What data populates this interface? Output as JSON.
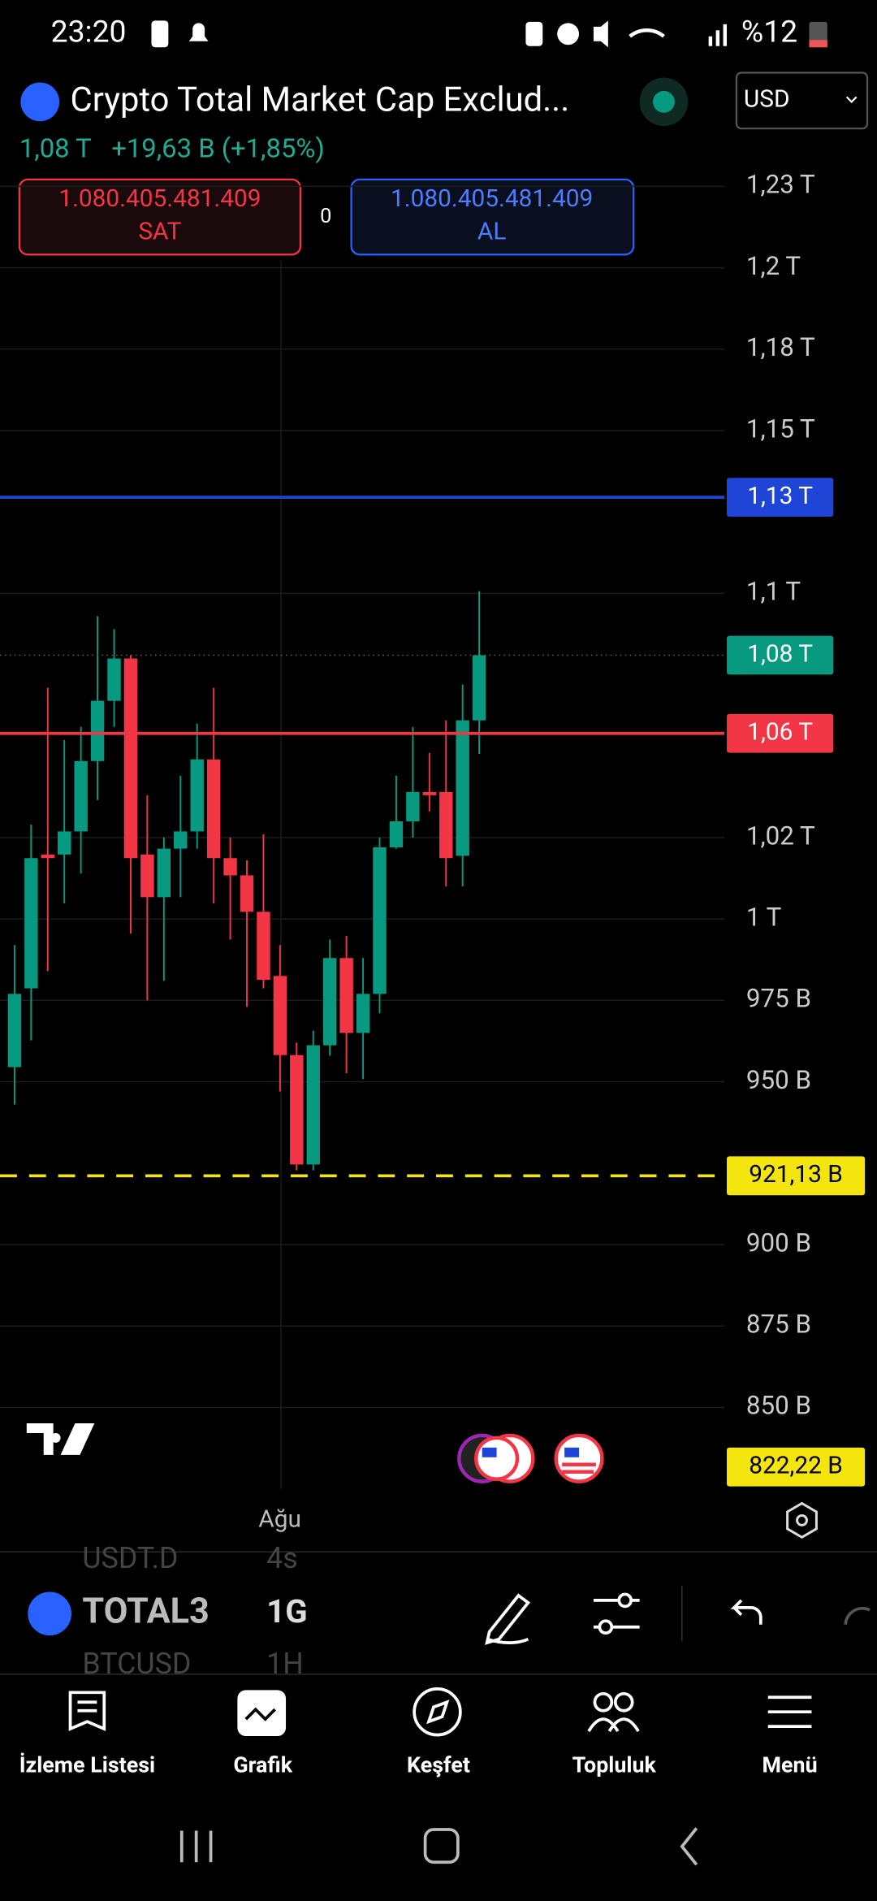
{
  "status_bar": {
    "time": "23:20",
    "battery": "%12"
  },
  "header": {
    "title": "Crypto Total Market Cap Exclud...",
    "currency": "USD",
    "price": "1,08 T",
    "change": "+19,63 B (+1,85%)"
  },
  "trade": {
    "sell_price": "1.080.405.481.409",
    "sell": "SAT",
    "spread": "0",
    "buy_price": "1.080.405.481.409",
    "buy": "AL"
  },
  "chart_data": {
    "type": "candlestick",
    "ylim": [
      825,
      1245
    ],
    "yticks": [
      {
        "value": 1225,
        "label": "1,23 T"
      },
      {
        "value": 1200,
        "label": "1,2 T"
      },
      {
        "value": 1175,
        "label": "1,18 T"
      },
      {
        "value": 1150,
        "label": "1,15 T"
      },
      {
        "value": 1100,
        "label": "1,1 T"
      },
      {
        "value": 1025,
        "label": "1,02 T"
      },
      {
        "value": 1000,
        "label": "1 T"
      },
      {
        "value": 975,
        "label": "975 B"
      },
      {
        "value": 950,
        "label": "950 B"
      },
      {
        "value": 900,
        "label": "900 B"
      },
      {
        "value": 875,
        "label": "875 B"
      },
      {
        "value": 850,
        "label": "850 B"
      }
    ],
    "open": [
      954.5,
      978.7,
      1019.8,
      1019.8,
      1026.9,
      1048.5,
      1067,
      1080,
      1019.8,
      1006.7,
      1021.6,
      1026.9,
      1049,
      1018.7,
      1013.4,
      1002.2,
      982.5,
      958.2,
      924.6,
      961.2,
      988,
      965,
      977,
      1022,
      1030,
      1039,
      1039,
      1019.4,
      1061
    ],
    "high": [
      992,
      1029,
      1071,
      1055,
      1059,
      1093,
      1089,
      1081,
      1038,
      1025,
      1044,
      1060,
      1071,
      1025,
      1018,
      1026,
      992,
      962,
      965.7,
      993.7,
      994.8,
      988,
      1025,
      1044,
      1059,
      1051,
      1061,
      1072,
      1100.7
    ],
    "low": [
      943,
      962.7,
      984,
      1004.8,
      1014,
      1036.5,
      1059,
      995.5,
      975,
      981,
      1006.7,
      1021.6,
      1004.8,
      993.7,
      973,
      978.7,
      947,
      922.8,
      922.8,
      958,
      952.6,
      950.8,
      971,
      1021.6,
      1025,
      1033,
      1010,
      1010,
      1050.7
    ],
    "close": [
      977,
      1018.7,
      1018.7,
      1026.9,
      1048.5,
      1067,
      1080,
      1018.7,
      1006.7,
      1021.6,
      1026.9,
      1049,
      1018.7,
      1013.4,
      1002.2,
      981.3,
      958.2,
      924.6,
      961.2,
      988,
      965,
      977,
      1022,
      1030,
      1039,
      1038,
      1018.7,
      1061,
      1081
    ],
    "up_color": "#089981",
    "down_color": "#f23645",
    "price_lines": [
      {
        "value": 1129.5,
        "label": "1,13 T",
        "color": "#1f45d6"
      },
      {
        "value": 1081,
        "label": "1,08 T",
        "color": "#089981"
      },
      {
        "value": 1057,
        "label": "1,06 T",
        "color": "#f23645"
      },
      {
        "value": 921.13,
        "label": "921,13 B",
        "color": "#f5e50f"
      }
    ],
    "x_label": "Ağu",
    "low_label": "822,22 B"
  },
  "toolbar": {
    "symbol": "TOTAL3",
    "interval": "1G",
    "prev_symbol": "USDT.D",
    "prev_interval": "4s",
    "next_symbol": "BTCUSD",
    "next_interval": "1H"
  },
  "nav": [
    "İzleme Listesi",
    "Grafik",
    "Keşfet",
    "Topluluk",
    "Menü"
  ]
}
